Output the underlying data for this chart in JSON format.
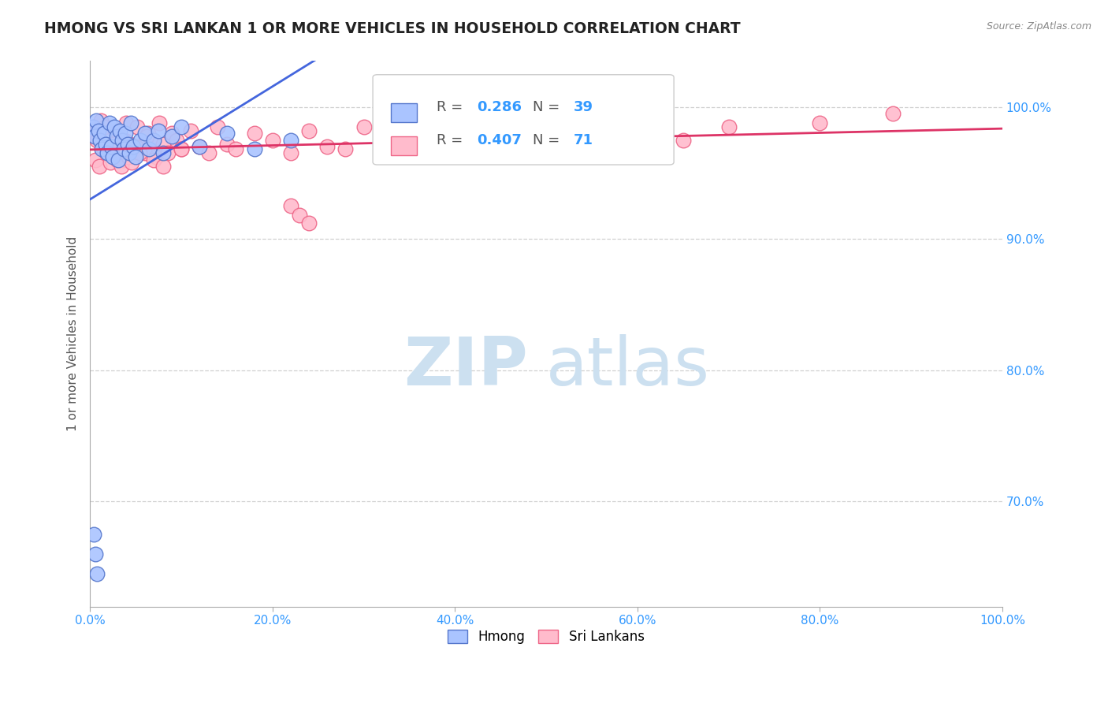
{
  "title": "HMONG VS SRI LANKAN 1 OR MORE VEHICLES IN HOUSEHOLD CORRELATION CHART",
  "source_text": "Source: ZipAtlas.com",
  "ylabel": "1 or more Vehicles in Household",
  "r_hmong": 0.286,
  "n_hmong": 39,
  "r_srilankan": 0.407,
  "n_srilankan": 71,
  "xlim": [
    0.0,
    100.0
  ],
  "ylim": [
    62.0,
    103.5
  ],
  "x_ticks": [
    0.0,
    20.0,
    40.0,
    60.0,
    80.0,
    100.0
  ],
  "y_ticks_right": [
    70.0,
    80.0,
    90.0,
    100.0
  ],
  "x_tick_labels": [
    "0.0%",
    "20.0%",
    "40.0%",
    "60.0%",
    "80.0%",
    "100.0%"
  ],
  "y_tick_labels_right": [
    "70.0%",
    "80.0%",
    "90.0%",
    "100.0%"
  ],
  "background_color": "#ffffff",
  "grid_color": "#d0d0d0",
  "hmong_color": "#aac4ff",
  "hmong_edge_color": "#5577cc",
  "srilankan_color": "#ffbbcc",
  "srilankan_edge_color": "#ee6688",
  "hmong_line_color": "#4466dd",
  "srilankan_line_color": "#dd3366",
  "title_color": "#222222",
  "watermark_color": "#cce0f0",
  "axis_label_color": "#555555",
  "tick_label_color": "#3399ff",
  "legend_r_color": "#3399ff",
  "hmong_x": [
    0.3,
    0.5,
    0.7,
    0.9,
    1.1,
    1.3,
    1.5,
    1.7,
    1.9,
    2.1,
    2.3,
    2.5,
    2.7,
    2.9,
    3.1,
    3.3,
    3.5,
    3.7,
    3.9,
    4.1,
    4.3,
    4.5,
    4.7,
    5.0,
    5.5,
    6.0,
    6.5,
    7.0,
    7.5,
    8.0,
    9.0,
    10.0,
    12.0,
    15.0,
    18.0,
    22.0,
    0.4,
    0.6,
    0.8
  ],
  "hmong_y": [
    98.5,
    97.8,
    99.0,
    98.2,
    97.5,
    96.8,
    98.0,
    97.2,
    96.5,
    98.8,
    97.0,
    96.2,
    98.5,
    97.8,
    96.0,
    98.2,
    97.5,
    96.8,
    98.0,
    97.2,
    96.5,
    98.8,
    97.0,
    96.2,
    97.5,
    98.0,
    96.8,
    97.5,
    98.2,
    96.5,
    97.8,
    98.5,
    97.0,
    98.0,
    96.8,
    97.5,
    67.5,
    66.0,
    64.5
  ],
  "srilankan_x": [
    0.4,
    0.8,
    1.2,
    1.6,
    2.0,
    2.4,
    2.8,
    3.2,
    3.6,
    4.0,
    4.4,
    4.8,
    5.2,
    5.6,
    6.0,
    6.4,
    6.8,
    7.2,
    7.6,
    8.0,
    8.5,
    9.0,
    9.5,
    10.0,
    11.0,
    12.0,
    13.0,
    14.0,
    15.0,
    16.0,
    18.0,
    20.0,
    22.0,
    24.0,
    26.0,
    28.0,
    30.0,
    32.0,
    35.0,
    38.0,
    40.0,
    42.0,
    45.0,
    48.0,
    50.0,
    55.0,
    60.0,
    65.0,
    70.0,
    80.0,
    88.0,
    0.6,
    1.0,
    1.4,
    1.8,
    2.2,
    2.6,
    3.0,
    3.4,
    3.8,
    4.2,
    4.6,
    5.0,
    5.4,
    6.2,
    7.0,
    8.0,
    10.0,
    22.0,
    23.0,
    24.0
  ],
  "srilankan_y": [
    98.0,
    97.5,
    99.0,
    98.5,
    97.0,
    96.5,
    98.2,
    97.8,
    96.0,
    98.8,
    97.2,
    96.8,
    98.5,
    97.0,
    96.5,
    98.0,
    97.5,
    96.2,
    98.8,
    97.2,
    96.5,
    98.0,
    97.5,
    96.8,
    98.2,
    97.0,
    96.5,
    98.5,
    97.2,
    96.8,
    98.0,
    97.5,
    96.5,
    98.2,
    97.0,
    96.8,
    98.5,
    97.2,
    96.5,
    98.0,
    97.5,
    96.8,
    98.2,
    97.0,
    98.8,
    97.5,
    98.0,
    97.5,
    98.5,
    98.8,
    99.5,
    96.0,
    95.5,
    97.0,
    96.5,
    95.8,
    97.2,
    96.0,
    95.5,
    97.5,
    96.2,
    95.8,
    97.0,
    96.5,
    97.8,
    96.0,
    95.5,
    96.8,
    92.5,
    91.8,
    91.2
  ]
}
